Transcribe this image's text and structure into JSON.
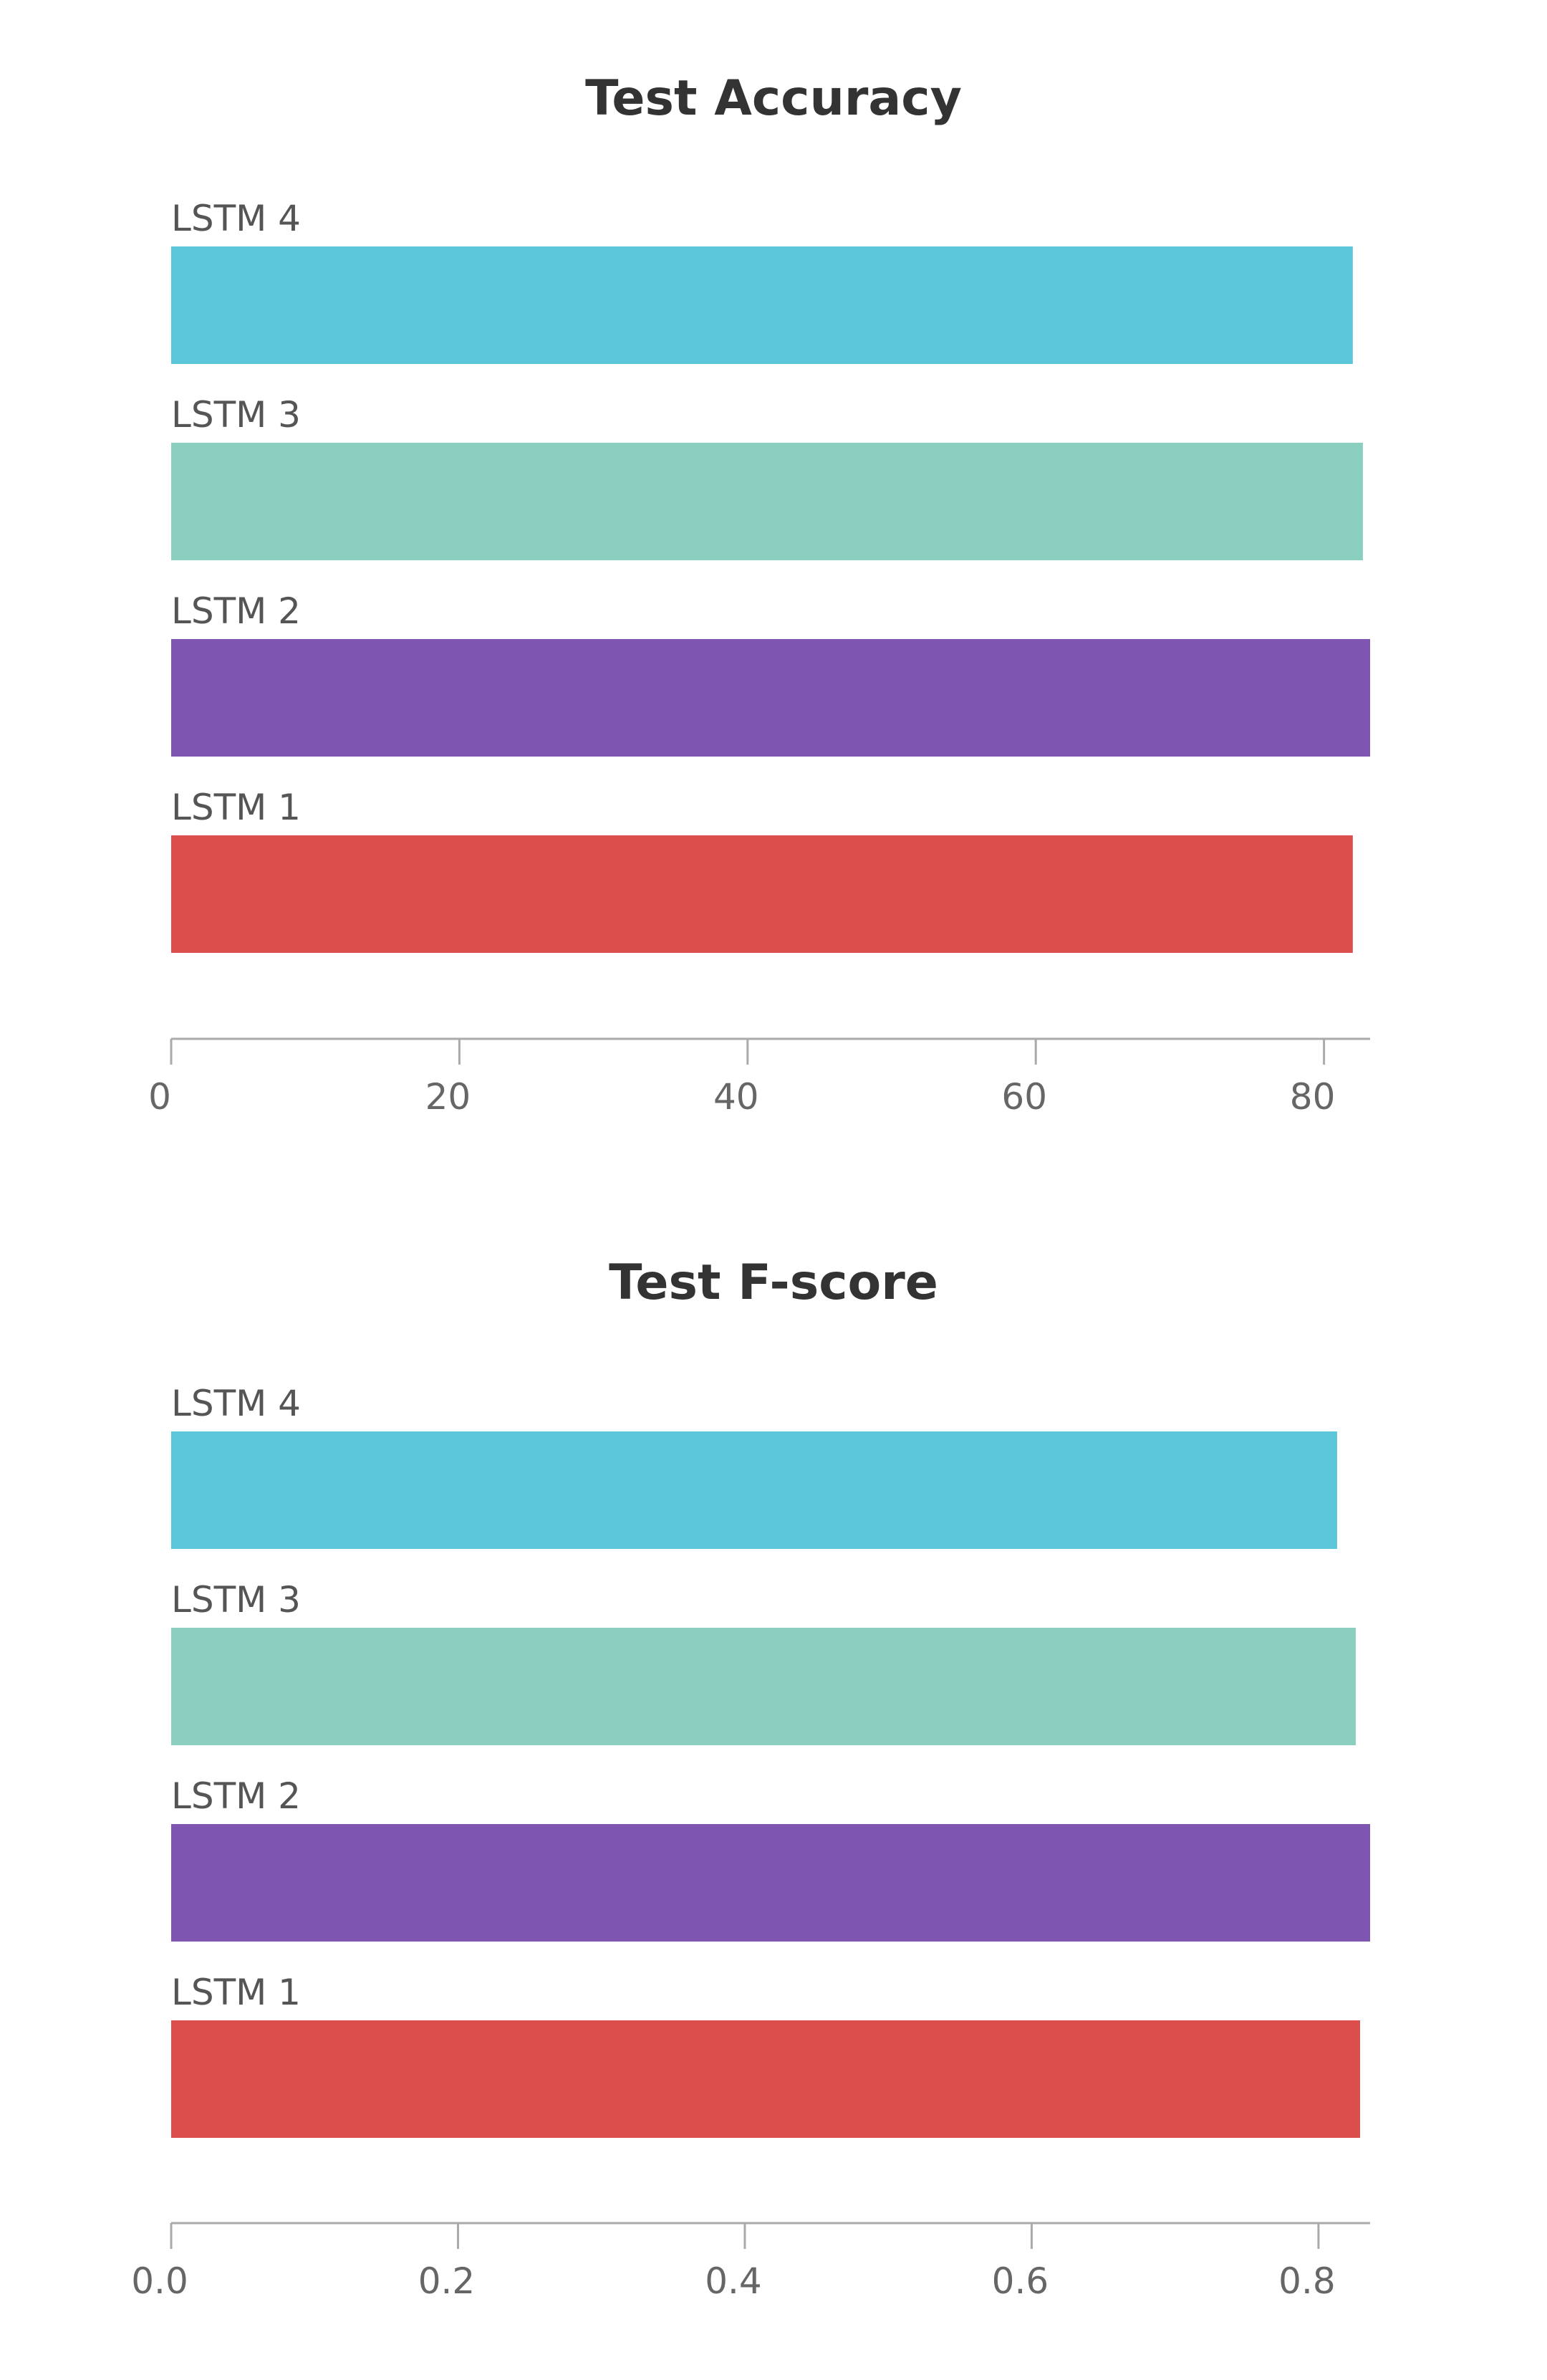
{
  "chart_data": [
    {
      "type": "bar",
      "orientation": "horizontal",
      "title": "Test Accuracy",
      "xlabel": "",
      "ylabel": "",
      "categories": [
        "LSTM 4",
        "LSTM 3",
        "LSTM 2",
        "LSTM 1"
      ],
      "values": [
        82.0,
        82.7,
        83.2,
        82.0
      ],
      "colors": [
        "#5bc5d9",
        "#8acfbf",
        "#7f55b2",
        "#dc4e4b"
      ],
      "xlim": [
        0,
        83.2
      ],
      "ticks": [
        0,
        20,
        40,
        60,
        80
      ],
      "tick_labels": [
        "0",
        "20",
        "40",
        "60",
        "80"
      ],
      "grid": false,
      "legend": "none"
    },
    {
      "type": "bar",
      "orientation": "horizontal",
      "title": "Test F-score",
      "xlabel": "",
      "ylabel": "",
      "categories": [
        "LSTM 4",
        "LSTM 3",
        "LSTM 2",
        "LSTM 1"
      ],
      "values": [
        0.813,
        0.826,
        0.836,
        0.829
      ],
      "colors": [
        "#5bc5d9",
        "#8acfbf",
        "#7f55b2",
        "#dc4e4b"
      ],
      "xlim": [
        0,
        0.836
      ],
      "ticks": [
        0.0,
        0.2,
        0.4,
        0.6,
        0.8
      ],
      "tick_labels": [
        "0.0",
        "0.2",
        "0.4",
        "0.6",
        "0.8"
      ],
      "grid": false,
      "legend": "none"
    }
  ]
}
